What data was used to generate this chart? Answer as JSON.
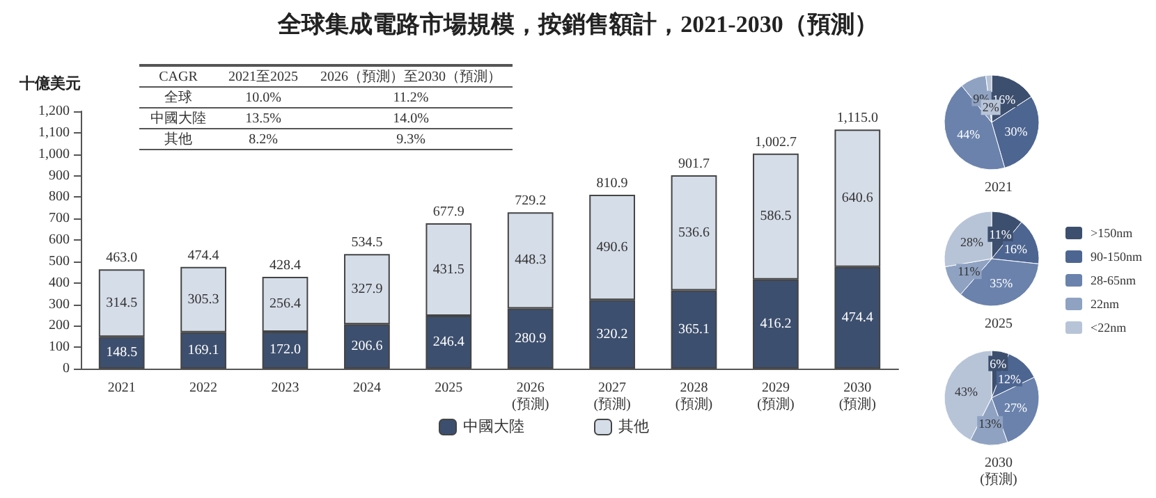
{
  "chart_data": [
    {
      "type": "bar",
      "stacked": true,
      "title": "全球集成電路市場規模，按銷售額計，2021-2030（預測）",
      "ylabel": "十億美元",
      "categories": [
        "2021",
        "2022",
        "2023",
        "2024",
        "2025",
        "2026\n(預測)",
        "2027\n(預測)",
        "2028\n(預測)",
        "2029\n(預測)",
        "2030\n(預測)"
      ],
      "series": [
        {
          "name": "中國大陸",
          "color": "#3d4f6e",
          "values": [
            148.5,
            169.1,
            172.0,
            206.6,
            246.4,
            280.9,
            320.2,
            365.1,
            416.2,
            474.4
          ],
          "value_labels": [
            "148.5",
            "169.1",
            "172.0",
            "206.6",
            "246.4",
            "280.9",
            "320.2",
            "365.1",
            "416.2",
            "474.4"
          ]
        },
        {
          "name": "其他",
          "color": "#d5dde8",
          "values": [
            314.5,
            305.3,
            256.4,
            327.9,
            431.5,
            448.3,
            490.6,
            536.6,
            586.5,
            640.6
          ],
          "value_labels": [
            "314.5",
            "305.3",
            "256.4",
            "327.9",
            "431.5",
            "448.3",
            "490.6",
            "536.6",
            "586.5",
            "640.6"
          ]
        }
      ],
      "totals": [
        "463.0",
        "474.4",
        "428.4",
        "534.5",
        "677.9",
        "729.2",
        "810.9",
        "901.7",
        "1,002.7",
        "1,115.0"
      ],
      "ylim": [
        0,
        1200
      ],
      "yticks": [
        0,
        100,
        200,
        300,
        400,
        500,
        600,
        700,
        800,
        900,
        {
          "value": 1000,
          "label": "1,000"
        },
        {
          "value": 1100,
          "label": "1,100"
        },
        {
          "value": 1200,
          "label": "1,200"
        }
      ],
      "grid": false,
      "legend": "bottom",
      "annotations": [
        "CAGR",
        "2021至2025",
        "2026（預測）至2030（預測）",
        "全球",
        "10.0%",
        "11.2%",
        "中國大陸",
        "13.5%",
        "14.0%",
        "其他",
        "8.2%",
        "9.3%"
      ]
    },
    {
      "type": "pie",
      "title": "2021",
      "categories": [
        null,
        null,
        null,
        null,
        null
      ],
      "values": [
        16,
        30,
        44,
        9,
        2
      ],
      "value_labels": [
        "16%",
        "30%",
        "44%",
        "9%",
        "2%"
      ],
      "colors": [
        "#3d4f6e",
        "#4d6591",
        "#6a82ac",
        "#8fa2c2",
        "#b7c4d8"
      ],
      "legend": false
    },
    {
      "type": "pie",
      "title": "2025",
      "categories": [
        ">150nm",
        "90-150nm",
        "28-65nm",
        "22nm",
        "<22nm"
      ],
      "values": [
        11,
        16,
        35,
        11,
        28
      ],
      "value_labels": [
        "11%",
        "16%",
        "35%",
        "11%",
        "28%"
      ],
      "colors": [
        "#3d4f6e",
        "#4d6591",
        "#6a82ac",
        "#8fa2c2",
        "#b7c4d8"
      ],
      "legend": "right"
    },
    {
      "type": "pie",
      "title": "2030\n(預測)",
      "categories": [
        null,
        null,
        null,
        null,
        null
      ],
      "values": [
        6,
        12,
        27,
        13,
        43
      ],
      "value_labels": [
        "6%",
        "12%",
        "27%",
        "13%",
        "43%"
      ],
      "colors": [
        "#3d4f6e",
        "#4d6591",
        "#6a82ac",
        "#8fa2c2",
        "#b7c4d8"
      ],
      "legend": false
    }
  ]
}
